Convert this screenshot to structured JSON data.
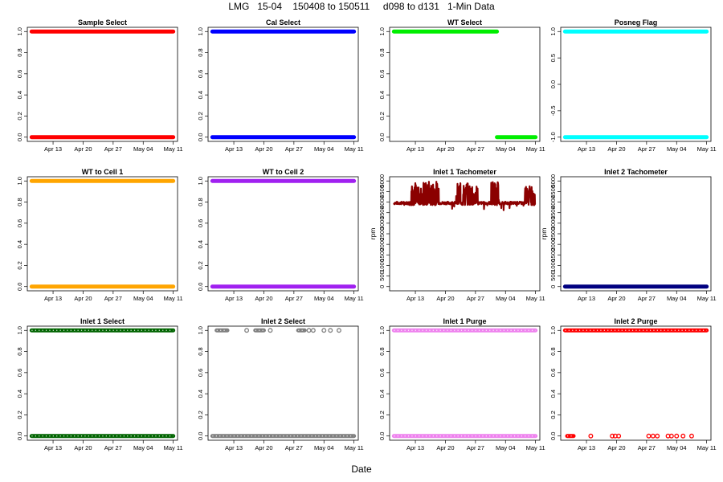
{
  "title": "LMG   15-04    150408 to 150511     d098 to d131   1-Min Data",
  "x_axis_label": "Date",
  "chart_data": [
    {
      "type": "scatter",
      "title": "Sample Select",
      "color": "#ff0000",
      "ylim": [
        0,
        1
      ],
      "yticks": [
        "0.0",
        "0.2",
        "0.4",
        "0.6",
        "0.8",
        "1.0"
      ],
      "ylabel": "",
      "segments": [
        {
          "y": 1,
          "from": "Apr 08",
          "to": "May 11"
        },
        {
          "y": 0,
          "from": "Apr 08",
          "to": "May 11"
        }
      ],
      "points": [],
      "hollow": false
    },
    {
      "type": "scatter",
      "title": "Cal Select",
      "color": "#0000ff",
      "ylim": [
        0,
        1
      ],
      "yticks": [
        "0.0",
        "0.2",
        "0.4",
        "0.6",
        "0.8",
        "1.0"
      ],
      "ylabel": "",
      "segments": [
        {
          "y": 1,
          "from": "Apr 08",
          "to": "May 11"
        },
        {
          "y": 0,
          "from": "Apr 08",
          "to": "May 11"
        }
      ],
      "points": [],
      "hollow": false
    },
    {
      "type": "scatter",
      "title": "WT Select",
      "color": "#00ee00",
      "ylim": [
        0,
        1
      ],
      "yticks": [
        "0.0",
        "0.2",
        "0.4",
        "0.6",
        "0.8",
        "1.0"
      ],
      "ylabel": "",
      "segments": [
        {
          "y": 1,
          "from": "Apr 08",
          "to": "May 02"
        },
        {
          "y": 0,
          "from": "May 02",
          "to": "May 11"
        }
      ],
      "points": [],
      "hollow": false
    },
    {
      "type": "scatter",
      "title": "Posneg Flag",
      "color": "#00ffff",
      "ylim": [
        -1,
        1
      ],
      "yticks": [
        "-1.0",
        "-0.5",
        "0.0",
        "0.5",
        "1.0"
      ],
      "ylabel": "",
      "segments": [
        {
          "y": 1,
          "from": "Apr 08",
          "to": "May 11"
        },
        {
          "y": -1,
          "from": "Apr 08",
          "to": "May 11"
        }
      ],
      "points": [],
      "hollow": false
    },
    {
      "type": "scatter",
      "title": "WT to Cell 1",
      "color": "#ffa500",
      "ylim": [
        0,
        1
      ],
      "yticks": [
        "0.0",
        "0.2",
        "0.4",
        "0.6",
        "0.8",
        "1.0"
      ],
      "ylabel": "",
      "segments": [
        {
          "y": 1,
          "from": "Apr 08",
          "to": "May 11"
        },
        {
          "y": 0,
          "from": "Apr 08",
          "to": "May 11"
        }
      ],
      "points": [],
      "hollow": false
    },
    {
      "type": "scatter",
      "title": "WT to Cell 2",
      "color": "#a020f0",
      "ylim": [
        0,
        1
      ],
      "yticks": [
        "0.0",
        "0.2",
        "0.4",
        "0.6",
        "0.8",
        "1.0"
      ],
      "ylabel": "",
      "segments": [
        {
          "y": 1,
          "from": "Apr 08",
          "to": "May 11"
        },
        {
          "y": 0,
          "from": "Apr 08",
          "to": "May 11"
        }
      ],
      "points": [],
      "hollow": false
    },
    {
      "type": "line",
      "title": "Inlet 1 Tachometer",
      "color": "#8b0000",
      "ylim": [
        0,
        5000
      ],
      "yticks": [
        "0",
        "500",
        "1000",
        "1500",
        "2000",
        "2500",
        "3000",
        "3500",
        "4000",
        "4500",
        "5000"
      ],
      "ylabel": "rpm",
      "segments": [],
      "points": [],
      "hollow": false,
      "series": {
        "from": "Apr 08",
        "to": "May 11",
        "base": 3950,
        "bursts": [
          {
            "from": "Apr 11.5",
            "to": "Apr 18.5",
            "high": 5000
          },
          {
            "from": "Apr 22.5",
            "to": "Apr 27.5",
            "high": 4900
          },
          {
            "from": "Apr 30.5",
            "to": "May 02.5",
            "high": 5000
          },
          {
            "from": "May 08.5",
            "to": "May 11",
            "high": 4800
          }
        ]
      }
    },
    {
      "type": "scatter",
      "title": "Inlet 2 Tachometer",
      "color": "#000080",
      "ylim": [
        0,
        5000
      ],
      "yticks": [
        "0",
        "500",
        "1000",
        "1500",
        "2000",
        "2500",
        "3000",
        "3500",
        "4000",
        "4500",
        "5000"
      ],
      "ylabel": "rpm",
      "segments": [
        {
          "y": 0,
          "from": "Apr 08",
          "to": "May 11"
        }
      ],
      "points": [],
      "hollow": false
    },
    {
      "type": "scatter",
      "title": "Inlet 1 Select",
      "color": "#006400",
      "ylim": [
        0,
        1
      ],
      "yticks": [
        "0.0",
        "0.2",
        "0.4",
        "0.6",
        "0.8",
        "1.0"
      ],
      "ylabel": "",
      "segments": [
        {
          "y": 1,
          "from": "Apr 08",
          "to": "May 11"
        },
        {
          "y": 0,
          "from": "Apr 08",
          "to": "May 11"
        }
      ],
      "points": [],
      "hollow": true
    },
    {
      "type": "scatter",
      "title": "Inlet 2 Select",
      "color": "#7f7f7f",
      "ylim": [
        0,
        1
      ],
      "yticks": [
        "0.0",
        "0.2",
        "0.4",
        "0.6",
        "0.8",
        "1.0"
      ],
      "ylabel": "",
      "segments": [
        {
          "y": 0,
          "from": "Apr 08",
          "to": "May 11"
        },
        {
          "y": 1,
          "from": "Apr 09",
          "to": "Apr 11.5"
        },
        {
          "y": 1,
          "from": "Apr 18",
          "to": "Apr 20"
        },
        {
          "y": 1,
          "from": "Apr 28",
          "to": "Apr 29.5"
        }
      ],
      "points": [
        {
          "x": "Apr 16",
          "y": 1
        },
        {
          "x": "Apr 21.5",
          "y": 1
        },
        {
          "x": "Apr 30.5",
          "y": 1
        },
        {
          "x": "May 01.5",
          "y": 1
        },
        {
          "x": "May 04",
          "y": 1
        },
        {
          "x": "May 05.5",
          "y": 1
        },
        {
          "x": "May 07.5",
          "y": 1
        }
      ],
      "hollow": true
    },
    {
      "type": "scatter",
      "title": "Inlet 1 Purge",
      "color": "#ee82ee",
      "ylim": [
        0,
        1
      ],
      "yticks": [
        "0.0",
        "0.2",
        "0.4",
        "0.6",
        "0.8",
        "1.0"
      ],
      "ylabel": "",
      "segments": [
        {
          "y": 1,
          "from": "Apr 08",
          "to": "May 11"
        },
        {
          "y": 0,
          "from": "Apr 08",
          "to": "May 11"
        }
      ],
      "points": [],
      "hollow": true
    },
    {
      "type": "scatter",
      "title": "Inlet 2 Purge",
      "color": "#ff0000",
      "ylim": [
        0,
        1
      ],
      "yticks": [
        "0.0",
        "0.2",
        "0.4",
        "0.6",
        "0.8",
        "1.0"
      ],
      "ylabel": "",
      "segments": [
        {
          "y": 1,
          "from": "Apr 08",
          "to": "May 11"
        },
        {
          "y": 0,
          "from": "Apr 08.5",
          "to": "Apr 10"
        }
      ],
      "points": [
        {
          "x": "Apr 14",
          "y": 0
        },
        {
          "x": "Apr 19",
          "y": 0
        },
        {
          "x": "Apr 19.7",
          "y": 0
        },
        {
          "x": "Apr 20.5",
          "y": 0
        },
        {
          "x": "Apr 27.5",
          "y": 0
        },
        {
          "x": "Apr 28.5",
          "y": 0
        },
        {
          "x": "Apr 29.5",
          "y": 0
        },
        {
          "x": "May 02",
          "y": 0
        },
        {
          "x": "May 02.8",
          "y": 0
        },
        {
          "x": "May 04",
          "y": 0
        },
        {
          "x": "May 05.5",
          "y": 0
        },
        {
          "x": "May 07.5",
          "y": 0
        }
      ],
      "hollow": true
    }
  ],
  "x_ticks": [
    "Apr 13",
    "Apr 20",
    "Apr 27",
    "May 04",
    "May 11"
  ],
  "x_range": [
    "Apr 07",
    "May 12"
  ]
}
